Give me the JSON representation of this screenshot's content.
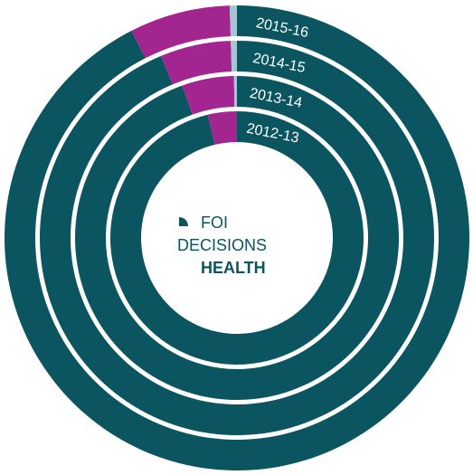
{
  "chart_data": {
    "type": "donut",
    "title_lines": [
      "FOI",
      "DECISIONS",
      "HEALTH"
    ],
    "colors": [
      "#0b5560",
      "#a3258f",
      "#a9c3d0"
    ],
    "rings": [
      {
        "label": "2012-13",
        "values": [
          96.3,
          3.7,
          0
        ]
      },
      {
        "label": "2013-14",
        "values": [
          94.5,
          5.2,
          0.3
        ]
      },
      {
        "label": "2014-15",
        "values": [
          93.7,
          5.8,
          0.5
        ]
      },
      {
        "label": "2015-16",
        "values": [
          92.5,
          7,
          0.5
        ]
      }
    ]
  }
}
